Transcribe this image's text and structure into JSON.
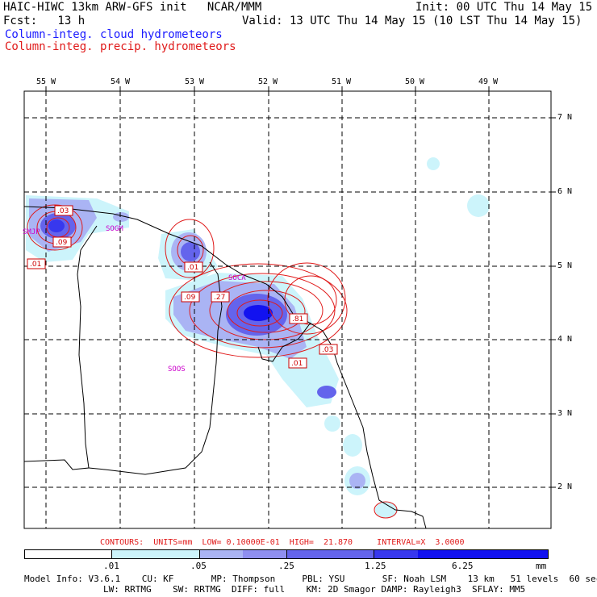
{
  "header": {
    "model_title": "HAIC-HIWC 13km ARW-GFS init   NCAR/MMM",
    "fcst": "Fcst:   13 h",
    "init": "Init: 00 UTC Thu 14 May 15",
    "valid": "Valid: 13 UTC Thu 14 May 15 (10 LST Thu 14 May 15)",
    "legend_cloud": "Column-integ. cloud hydrometeors",
    "legend_precip": "Column-integ. precip. hydrometeors"
  },
  "map": {
    "lon_labels": [
      "55 W",
      "54 W",
      "53 W",
      "52 W",
      "51 W",
      "50 W",
      "49 W"
    ],
    "lat_labels": [
      "7 N",
      "6 N",
      "5 N",
      "4 N",
      "3 N",
      "2 N"
    ],
    "stations": [
      "SMJP",
      "SOGM",
      "SOCA",
      "SOOS"
    ],
    "contour_labels": [
      ".03",
      ".09",
      ".01",
      ".01",
      ".09",
      ".27",
      ".81",
      ".03",
      ".01"
    ]
  },
  "footer": {
    "contours_line": "CONTOURS:  UNITS=mm  LOW= 0.10000E-01  HIGH=  21.870     INTERVAL=X  3.0000",
    "scale_ticks": [
      ".01",
      ".05",
      ".25",
      "1.25",
      "6.25"
    ],
    "scale_unit": "mm",
    "scale_colors": [
      "#ffffff",
      "#ccf4fb",
      "#aab4f4",
      "#8f8ff0",
      "#6464ec",
      "#3838ee",
      "#1212f0"
    ],
    "model_info_1": "Model Info: V3.6.1    CU: KF       MP: Thompson     PBL: YSU       SF: Noah LSM    13 km   51 levels  60 sec",
    "model_info_2": "LW: RRTMG    SW: RRTMG  DIFF: full    KM: 2D Smagor DAMP: Rayleigh3  SFLAY: MM5"
  }
}
